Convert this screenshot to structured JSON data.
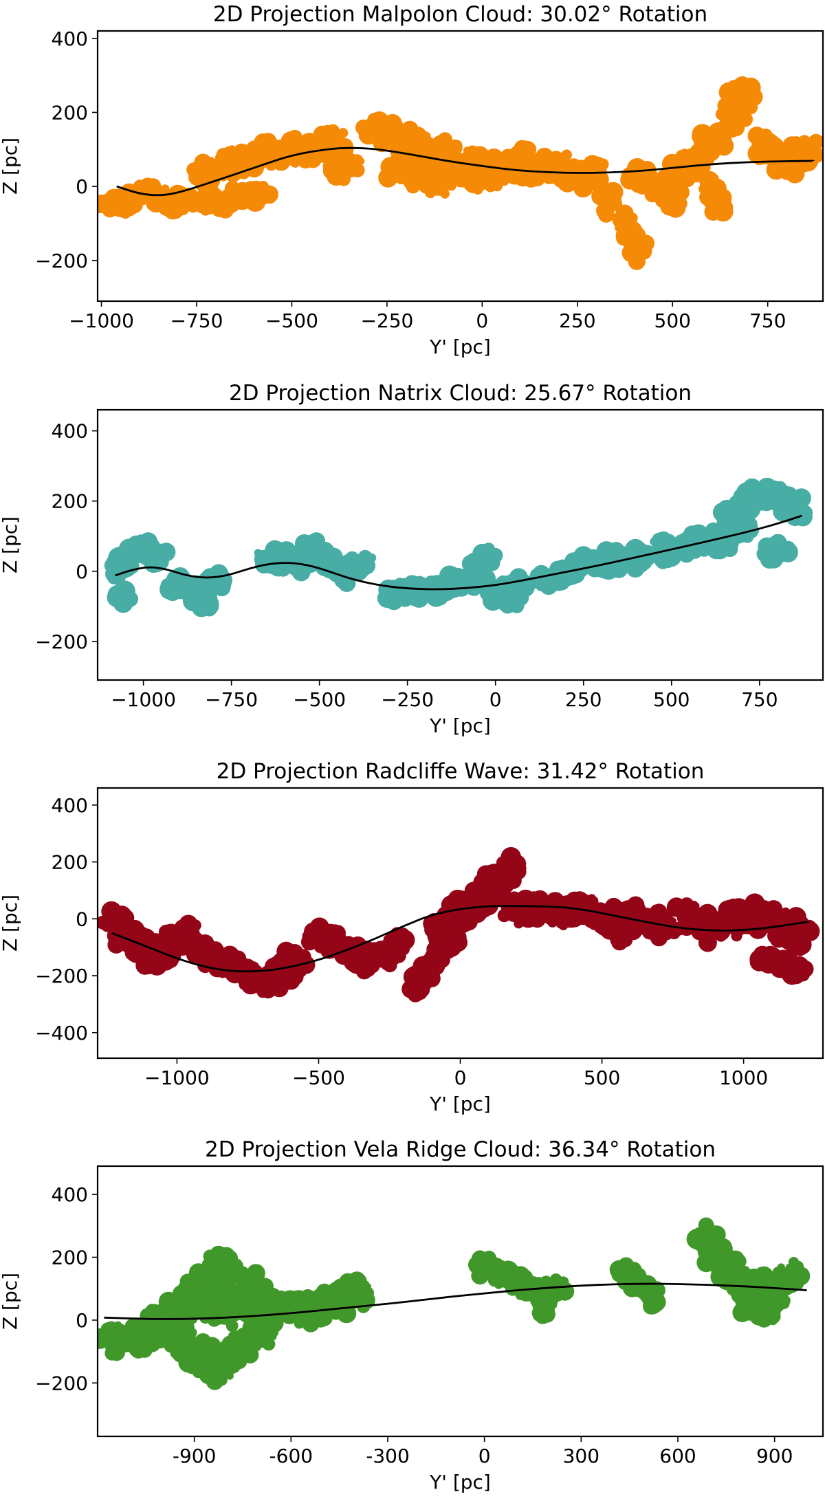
{
  "chart_data": [
    {
      "type": "scatter",
      "title": "2D Projection Malpolon Cloud: 30.02° Rotation",
      "xlabel": "Y' [pc]",
      "ylabel": "Z [pc]",
      "xlim": [
        -1010,
        895
      ],
      "ylim": [
        -310,
        420
      ],
      "xticks": [
        -1000,
        -750,
        -500,
        -250,
        0,
        250,
        500,
        750
      ],
      "xtick_labels": [
        "−1000",
        "−750",
        "−500",
        "−250",
        "0",
        "250",
        "500",
        "750"
      ],
      "yticks": [
        -200,
        0,
        200,
        400
      ],
      "ytick_labels": [
        "−200",
        "0",
        "200",
        "400"
      ],
      "color": "#f58a07",
      "point_clusters": [
        {
          "x": [
            -960,
            -880,
            -800,
            -700,
            -610
          ],
          "y": [
            -50,
            -20,
            -45,
            -40,
            -20
          ],
          "sx": 48,
          "sy": 24
        },
        {
          "x": [
            -720,
            -640,
            -560,
            -480,
            -400,
            -360
          ],
          "y": [
            40,
            70,
            85,
            95,
            120,
            55
          ],
          "sx": 40,
          "sy": 32
        },
        {
          "x": [
            -270,
            -190,
            -110,
            -30
          ],
          "y": [
            150,
            120,
            95,
            70
          ],
          "sx": 42,
          "sy": 28
        },
        {
          "x": [
            -200,
            -120,
            -40,
            40,
            120,
            200,
            280
          ],
          "y": [
            40,
            20,
            30,
            40,
            60,
            50,
            30
          ],
          "sx": 45,
          "sy": 38
        },
        {
          "x": [
            330,
            380,
            410
          ],
          "y": [
            -40,
            -110,
            -165
          ],
          "sx": 18,
          "sy": 32
        },
        {
          "x": [
            420,
            470,
            500,
            520
          ],
          "y": [
            30,
            0,
            -30,
            40
          ],
          "sx": 30,
          "sy": 26
        },
        {
          "x": [
            560,
            600,
            660,
            680,
            740,
            800,
            850
          ],
          "y": [
            70,
            120,
            190,
            240,
            110,
            60,
            100
          ],
          "sx": 32,
          "sy": 30
        },
        {
          "x": [
            600,
            620
          ],
          "y": [
            -10,
            -50
          ],
          "sx": 16,
          "sy": 22
        }
      ],
      "fit_curve": {
        "x": [
          -960,
          -900,
          -850,
          -800,
          -700,
          -600,
          -500,
          -400,
          -330,
          -250,
          -100,
          0,
          100,
          250,
          400,
          500,
          600,
          700,
          800,
          870
        ],
        "y": [
          0,
          -20,
          -25,
          -18,
          15,
          50,
          85,
          102,
          105,
          98,
          70,
          55,
          42,
          35,
          40,
          50,
          60,
          66,
          68,
          69
        ]
      }
    },
    {
      "type": "scatter",
      "title": "2D Projection Natrix Cloud: 25.67° Rotation",
      "xlabel": "Y' [pc]",
      "ylabel": "Z [pc]",
      "xlim": [
        -1130,
        930
      ],
      "ylim": [
        -310,
        460
      ],
      "xticks": [
        -1000,
        -750,
        -500,
        -250,
        0,
        250,
        500,
        750
      ],
      "xtick_labels": [
        "−1000",
        "−750",
        "−500",
        "−250",
        "0",
        "250",
        "500",
        "750"
      ],
      "yticks": [
        -200,
        0,
        200,
        400
      ],
      "ytick_labels": [
        "−200",
        "0",
        "200",
        "400"
      ],
      "color": "#48ada4",
      "point_clusters": [
        {
          "x": [
            -1070,
            -1040,
            -1000,
            -960,
            -1060
          ],
          "y": [
            10,
            40,
            60,
            50,
            -70
          ],
          "sx": 22,
          "sy": 26
        },
        {
          "x": [
            -900,
            -850,
            -800,
            -830
          ],
          "y": [
            -40,
            -60,
            -30,
            -90
          ],
          "sx": 26,
          "sy": 22
        },
        {
          "x": [
            -640,
            -600,
            -560,
            -520,
            -470,
            -420,
            -380
          ],
          "y": [
            40,
            30,
            20,
            60,
            20,
            -10,
            20
          ],
          "sx": 32,
          "sy": 24
        },
        {
          "x": [
            -280,
            -220,
            -160,
            -110,
            -60,
            0,
            40
          ],
          "y": [
            -60,
            -55,
            -50,
            -30,
            -20,
            -60,
            -80
          ],
          "sx": 30,
          "sy": 22
        },
        {
          "x": [
            -60,
            -20
          ],
          "y": [
            0,
            40
          ],
          "sx": 18,
          "sy": 22
        },
        {
          "x": [
            60,
            140,
            200,
            260,
            320
          ],
          "y": [
            -40,
            -20,
            -10,
            20,
            20
          ],
          "sx": 34,
          "sy": 22
        },
        {
          "x": [
            320,
            400,
            480,
            560,
            640,
            700
          ],
          "y": [
            30,
            40,
            60,
            80,
            90,
            120
          ],
          "sx": 36,
          "sy": 30
        },
        {
          "x": [
            660,
            700,
            740,
            780,
            820,
            850,
            800
          ],
          "y": [
            150,
            180,
            210,
            220,
            210,
            180,
            60
          ],
          "sx": 30,
          "sy": 28
        }
      ],
      "fit_curve": {
        "x": [
          -1080,
          -1030,
          -980,
          -930,
          -880,
          -820,
          -760,
          -700,
          -640,
          -580,
          -520,
          -460,
          -400,
          -320,
          -240,
          -160,
          -80,
          0,
          100,
          200,
          300,
          400,
          500,
          600,
          700,
          800,
          870
        ],
        "y": [
          -12,
          5,
          13,
          5,
          -12,
          -20,
          -12,
          8,
          22,
          25,
          15,
          -5,
          -25,
          -42,
          -50,
          -52,
          -48,
          -40,
          -22,
          -2,
          18,
          40,
          62,
          85,
          108,
          135,
          158
        ]
      }
    },
    {
      "type": "scatter",
      "title": "2D Projection Radcliffe Wave: 31.42° Rotation",
      "xlabel": "Y' [pc]",
      "ylabel": "Z [pc]",
      "xlim": [
        -1280,
        1280
      ],
      "ylim": [
        -490,
        460
      ],
      "xticks": [
        -1000,
        -500,
        0,
        500,
        1000
      ],
      "xtick_labels": [
        "−1000",
        "−500",
        "0",
        "500",
        "1000"
      ],
      "yticks": [
        -400,
        -200,
        0,
        200,
        400
      ],
      "ytick_labels": [
        "−400",
        "−200",
        "0",
        "200",
        "400"
      ],
      "color": "#930517",
      "point_clusters": [
        {
          "x": [
            -1220,
            -1180,
            -1140,
            -1100,
            -1060,
            -1010,
            -960
          ],
          "y": [
            -20,
            -60,
            -100,
            -140,
            -120,
            -80,
            -60
          ],
          "sx": 40,
          "sy": 40
        },
        {
          "x": [
            -900,
            -820,
            -740,
            -680,
            -620,
            -590
          ],
          "y": [
            -130,
            -160,
            -200,
            -230,
            -190,
            -150
          ],
          "sx": 40,
          "sy": 36
        },
        {
          "x": [
            -500,
            -440,
            -380,
            -320,
            -270,
            -220
          ],
          "y": [
            -60,
            -80,
            -120,
            -150,
            -130,
            -90
          ],
          "sx": 34,
          "sy": 34
        },
        {
          "x": [
            -150,
            -110,
            -70,
            -30
          ],
          "y": [
            -230,
            -180,
            -120,
            -60
          ],
          "sx": 24,
          "sy": 34
        },
        {
          "x": [
            -60,
            0,
            60,
            120,
            170
          ],
          "y": [
            -30,
            20,
            60,
            120,
            180
          ],
          "sx": 36,
          "sy": 44
        },
        {
          "x": [
            200,
            280,
            360,
            440,
            520,
            580
          ],
          "y": [
            30,
            40,
            20,
            30,
            0,
            -10
          ],
          "sx": 44,
          "sy": 40
        },
        {
          "x": [
            560,
            640,
            720,
            800,
            880,
            960,
            1040,
            1120,
            1190
          ],
          "y": [
            -30,
            0,
            -20,
            10,
            -30,
            -10,
            0,
            -20,
            -50
          ],
          "sx": 40,
          "sy": 48
        },
        {
          "x": [
            1080,
            1140,
            1190
          ],
          "y": [
            -140,
            -160,
            -180
          ],
          "sx": 26,
          "sy": 20
        }
      ],
      "fit_curve": {
        "x": [
          -1230,
          -1100,
          -1000,
          -900,
          -800,
          -700,
          -600,
          -500,
          -400,
          -300,
          -200,
          -100,
          0,
          100,
          200,
          300,
          400,
          500,
          600,
          700,
          800,
          900,
          1000,
          1100,
          1230
        ],
        "y": [
          -50,
          -100,
          -140,
          -170,
          -185,
          -185,
          -170,
          -145,
          -110,
          -70,
          -25,
          15,
          35,
          45,
          45,
          44,
          38,
          20,
          0,
          -20,
          -35,
          -42,
          -40,
          -30,
          -10
        ]
      }
    },
    {
      "type": "scatter",
      "title": "2D Projection Vela Ridge Cloud: 36.34° Rotation",
      "xlabel": "Y' [pc]",
      "ylabel": "Z [pc]",
      "xlim": [
        -1200,
        1050
      ],
      "ylim": [
        -370,
        490
      ],
      "xticks": [
        -900,
        -600,
        -300,
        0,
        300,
        600,
        900
      ],
      "xtick_labels": [
        "-900",
        "-600",
        "-300",
        "0",
        "300",
        "600",
        "900"
      ],
      "yticks": [
        -200,
        0,
        200,
        400
      ],
      "ytick_labels": [
        "−200",
        "0",
        "200",
        "400"
      ],
      "color": "#41982a",
      "point_clusters": [
        {
          "x": [
            -1150,
            -1080,
            -1000,
            -940,
            -880,
            -820
          ],
          "y": [
            -60,
            -60,
            -40,
            40,
            120,
            170
          ],
          "sx": 40,
          "sy": 40
        },
        {
          "x": [
            -1000,
            -940,
            -880,
            -820,
            -760,
            -700
          ],
          "y": [
            0,
            -60,
            -120,
            -150,
            -100,
            -50
          ],
          "sx": 40,
          "sy": 44
        },
        {
          "x": [
            -900,
            -840,
            -780,
            -720
          ],
          "y": [
            80,
            60,
            40,
            100
          ],
          "sx": 46,
          "sy": 50
        },
        {
          "x": [
            -680,
            -620,
            -560,
            -500,
            -440,
            -400
          ],
          "y": [
            20,
            40,
            30,
            50,
            60,
            80
          ],
          "sx": 44,
          "sy": 40
        },
        {
          "x": [
            0,
            60,
            120,
            180,
            220
          ],
          "y": [
            170,
            140,
            110,
            90,
            100
          ],
          "sx": 30,
          "sy": 28
        },
        {
          "x": [
            200,
            180
          ],
          "y": [
            60,
            30
          ],
          "sx": 14,
          "sy": 18
        },
        {
          "x": [
            440,
            480,
            520
          ],
          "y": [
            150,
            110,
            70
          ],
          "sx": 22,
          "sy": 28
        },
        {
          "x": [
            690,
            720,
            760,
            800,
            850,
            900,
            950
          ],
          "y": [
            260,
            200,
            160,
            120,
            110,
            80,
            140
          ],
          "sx": 32,
          "sy": 38
        },
        {
          "x": [
            820,
            880
          ],
          "y": [
            40,
            20
          ],
          "sx": 26,
          "sy": 20
        }
      ],
      "fit_curve": {
        "x": [
          -1180,
          -1100,
          -1000,
          -900,
          -800,
          -700,
          -600,
          -500,
          -400,
          -300,
          -200,
          -100,
          0,
          100,
          200,
          300,
          400,
          500,
          600,
          700,
          800,
          900,
          1000
        ],
        "y": [
          8,
          5,
          3,
          4,
          8,
          14,
          22,
          32,
          42,
          52,
          63,
          75,
          85,
          95,
          103,
          110,
          114,
          116,
          115,
          112,
          108,
          102,
          95
        ]
      }
    }
  ]
}
